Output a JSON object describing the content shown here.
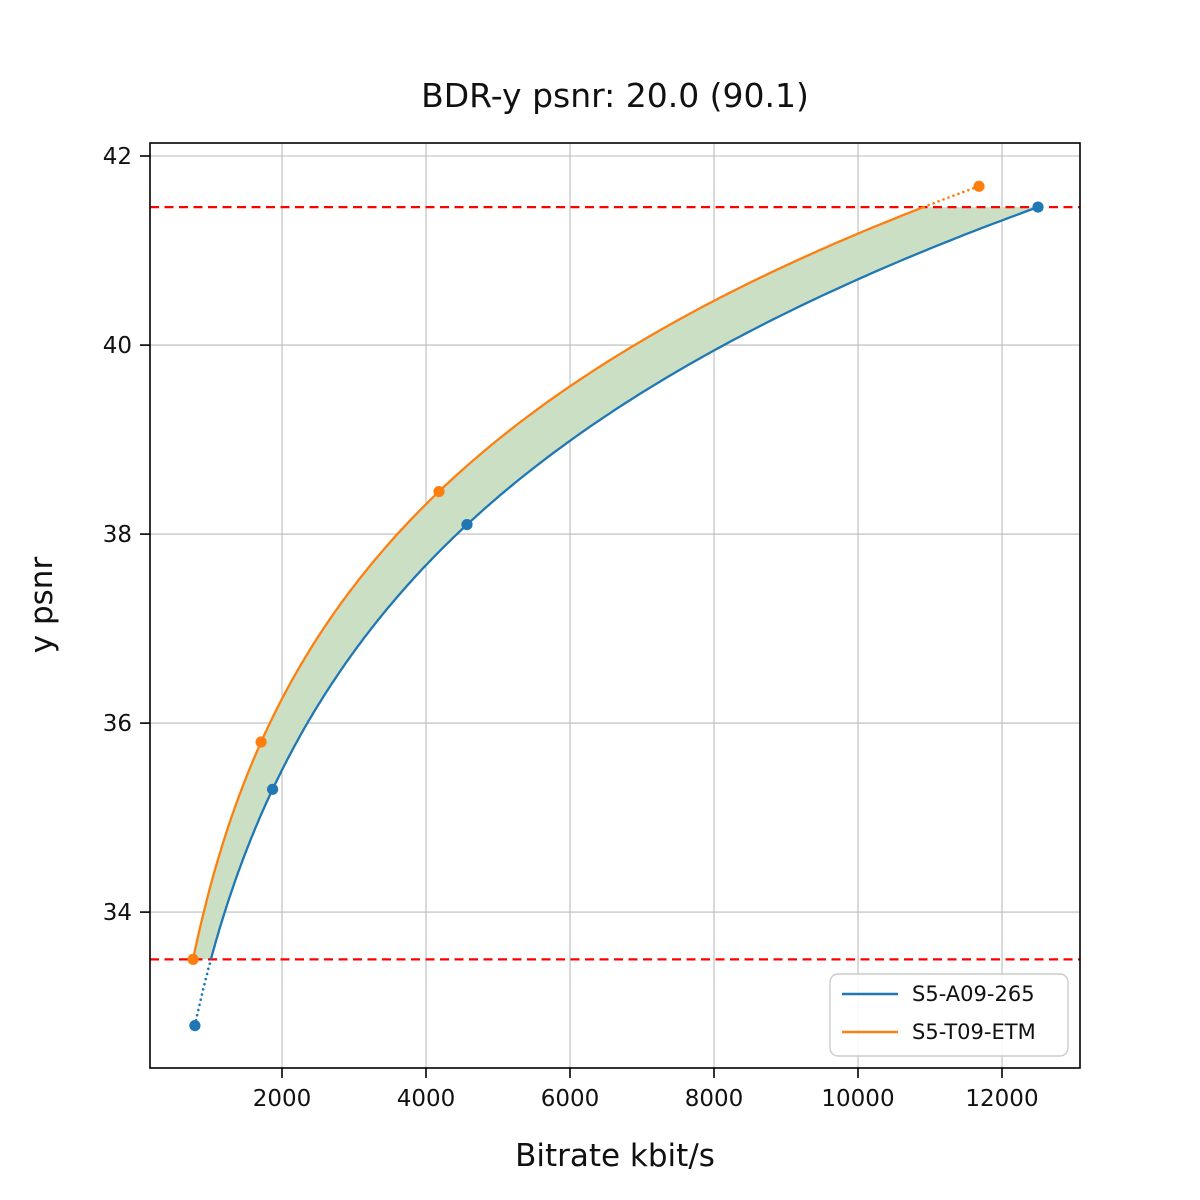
{
  "chart_data": {
    "type": "line",
    "title": "BDR-y psnr: 20.0 (90.1)",
    "xlabel": "Bitrate kbit/s",
    "ylabel": "y psnr",
    "x_range": [
      167,
      13083
    ],
    "y_range": [
      32.351,
      42.138
    ],
    "x_ticks": [
      2000,
      4000,
      6000,
      8000,
      10000,
      12000
    ],
    "y_ticks": [
      34,
      36,
      38,
      40,
      42
    ],
    "grid": true,
    "legend_position": "lower right",
    "series": [
      {
        "name": "S5-A09-265",
        "color": "#1f77b4",
        "x": [
          790,
          1870,
          4570,
          12500
        ],
        "y": [
          32.8,
          35.3,
          38.1,
          41.46
        ]
      },
      {
        "name": "S5-T09-ETM",
        "color": "#ff7f0e",
        "x": [
          765,
          1710,
          4180,
          11680
        ],
        "y": [
          33.5,
          35.8,
          38.45,
          41.68
        ]
      }
    ],
    "overlap_lines": {
      "color": "#ff0000",
      "lower": 33.5,
      "upper": 41.46
    },
    "fill_between_color": "#cbdfc5",
    "grid_color": "#bbbbbb",
    "axes_color": "#000000"
  }
}
